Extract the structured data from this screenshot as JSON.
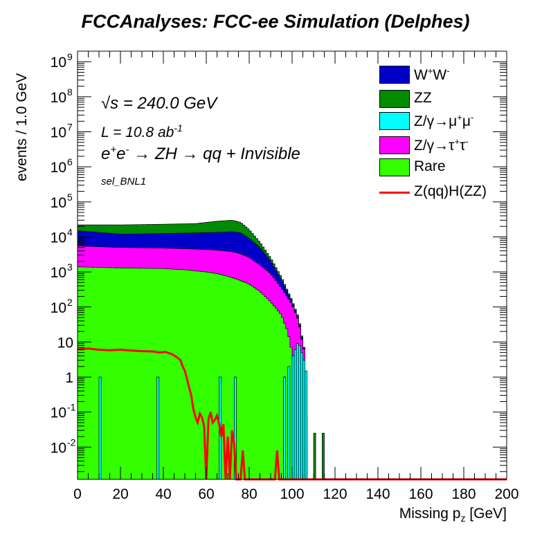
{
  "chart_data": {
    "type": "area",
    "title": "FCCAnalyses: FCC-ee Simulation (Delphes)",
    "xlabel": "Missing p_z [GeV]",
    "ylabel": "events / 1.0 GeV",
    "xlim": [
      0,
      200
    ],
    "ylim": [
      0.0012,
      2000000000
    ],
    "y_scale": "log",
    "x_ticks": [
      "0",
      "20",
      "40",
      "60",
      "80",
      "100",
      "120",
      "140",
      "160",
      "180",
      "200"
    ],
    "y_ticks": [
      {
        "label": "10",
        "exp": "-2",
        "value": 0.01
      },
      {
        "label": "10",
        "exp": "-1",
        "value": 0.1
      },
      {
        "label": "1",
        "exp": "",
        "value": 1
      },
      {
        "label": "10",
        "exp": "",
        "value": 10
      },
      {
        "label": "10",
        "exp": "2",
        "value": 100
      },
      {
        "label": "10",
        "exp": "3",
        "value": 1000
      },
      {
        "label": "10",
        "exp": "4",
        "value": 10000
      },
      {
        "label": "10",
        "exp": "5",
        "value": 100000
      },
      {
        "label": "10",
        "exp": "6",
        "value": 1000000
      },
      {
        "label": "10",
        "exp": "7",
        "value": 10000000
      },
      {
        "label": "10",
        "exp": "8",
        "value": 100000000
      },
      {
        "label": "10",
        "exp": "9",
        "value": 1000000000
      }
    ],
    "stacked_cumulative_top": [
      {
        "name": "ZZ",
        "color": "#008b00",
        "points": [
          [
            0,
            22000
          ],
          [
            20,
            22000
          ],
          [
            40,
            23000
          ],
          [
            55,
            24000
          ],
          [
            65,
            28000
          ],
          [
            72,
            30000
          ],
          [
            76,
            26000
          ],
          [
            80,
            16000
          ],
          [
            85,
            7000
          ],
          [
            90,
            2500
          ],
          [
            95,
            700
          ],
          [
            100,
            150
          ],
          [
            103,
            50
          ],
          [
            105,
            10
          ],
          [
            106,
            5
          ],
          [
            107,
            0.0012
          ]
        ]
      },
      {
        "name": "W+W-",
        "color": "#0000c8",
        "points": [
          [
            0,
            15000
          ],
          [
            20,
            12000
          ],
          [
            40,
            12500
          ],
          [
            55,
            13000
          ],
          [
            65,
            13500
          ],
          [
            72,
            14000
          ],
          [
            76,
            13000
          ],
          [
            80,
            9000
          ],
          [
            85,
            5000
          ],
          [
            90,
            2000
          ],
          [
            95,
            600
          ],
          [
            100,
            140
          ],
          [
            103,
            45
          ],
          [
            105,
            9
          ],
          [
            106,
            5
          ],
          [
            107,
            0.0012
          ]
        ]
      },
      {
        "name": "Z/γ→τ+τ-",
        "color": "#ff00ff",
        "points": [
          [
            0,
            5500
          ],
          [
            20,
            5000
          ],
          [
            40,
            4800
          ],
          [
            55,
            4500
          ],
          [
            65,
            4200
          ],
          [
            72,
            3800
          ],
          [
            76,
            3300
          ],
          [
            80,
            2600
          ],
          [
            85,
            1600
          ],
          [
            90,
            900
          ],
          [
            95,
            350
          ],
          [
            100,
            120
          ],
          [
            103,
            40
          ],
          [
            105,
            8
          ],
          [
            106,
            5
          ],
          [
            107,
            0.0012
          ]
        ]
      },
      {
        "name": "Rare",
        "color": "#33ff00",
        "points": [
          [
            0,
            1400
          ],
          [
            20,
            1300
          ],
          [
            40,
            1250
          ],
          [
            50,
            1150
          ],
          [
            60,
            1000
          ],
          [
            65,
            900
          ],
          [
            70,
            750
          ],
          [
            75,
            600
          ],
          [
            80,
            450
          ],
          [
            85,
            280
          ],
          [
            90,
            140
          ],
          [
            95,
            60
          ],
          [
            98,
            20
          ],
          [
            100,
            5
          ],
          [
            102,
            1
          ],
          [
            104,
            0.2
          ],
          [
            106,
            0.05
          ],
          [
            107,
            0.0012
          ]
        ]
      }
    ],
    "cyan_bins": [
      [
        96,
        1.0
      ],
      [
        98,
        2.0
      ],
      [
        100,
        4
      ],
      [
        101,
        6
      ],
      [
        102,
        9
      ],
      [
        103,
        8
      ],
      [
        104,
        5
      ],
      [
        105,
        3
      ],
      [
        106,
        1.5
      ]
    ],
    "spikes": [
      {
        "x": 10,
        "y": 1.0,
        "color": "#00ffff"
      },
      {
        "x": 37,
        "y": 1.0,
        "color": "#00ffff"
      },
      {
        "x": 66,
        "y": 1.0,
        "color": "#00ffff"
      },
      {
        "x": 73,
        "y": 1.0,
        "color": "#00ffff"
      },
      {
        "x": 96,
        "y": 1.0,
        "color": "#00ffff"
      },
      {
        "x": 110,
        "y": 0.025,
        "color": "#008b00"
      },
      {
        "x": 114,
        "y": 0.025,
        "color": "#008b00"
      }
    ],
    "signal": {
      "name": "Z(qq)H(ZZ)",
      "color": "#ff0000",
      "points": [
        [
          0,
          6.2
        ],
        [
          5,
          6.5
        ],
        [
          10,
          6.0
        ],
        [
          15,
          5.8
        ],
        [
          20,
          6.0
        ],
        [
          25,
          5.7
        ],
        [
          30,
          5.5
        ],
        [
          35,
          5.4
        ],
        [
          38,
          5.0
        ],
        [
          41,
          5.2
        ],
        [
          44,
          4.5
        ],
        [
          46,
          3.8
        ],
        [
          48,
          3.0
        ],
        [
          49,
          2.0
        ],
        [
          50,
          1.5
        ],
        [
          51,
          0.9
        ],
        [
          52,
          0.5
        ],
        [
          53,
          0.3
        ],
        [
          54,
          0.12
        ],
        [
          55,
          0.07
        ],
        [
          56,
          0.05
        ],
        [
          57,
          0.09
        ],
        [
          58,
          0.07
        ],
        [
          59,
          0.04
        ],
        [
          60,
          0.0012
        ],
        [
          61,
          0.06
        ],
        [
          62,
          0.1
        ],
        [
          63,
          0.05
        ],
        [
          64,
          0.06
        ],
        [
          65,
          0.08
        ],
        [
          66,
          0.045
        ],
        [
          67,
          0.02
        ],
        [
          68,
          0.045
        ],
        [
          69,
          0.0012
        ],
        [
          70,
          0.02
        ],
        [
          71,
          0.0012
        ],
        [
          72,
          0.03
        ],
        [
          73,
          0.012
        ],
        [
          74,
          0.0012
        ],
        [
          76,
          0.0012
        ],
        [
          77,
          0.008
        ],
        [
          78,
          0.0012
        ],
        [
          92,
          0.0012
        ],
        [
          93,
          0.008
        ],
        [
          94,
          0.0012
        ],
        [
          200,
          0.0012
        ]
      ]
    },
    "legend": [
      {
        "label": "W",
        "sup1": "+",
        "mid": "W",
        "sup2": "-",
        "color": "#0000c8",
        "kind": "box"
      },
      {
        "label": "ZZ",
        "color": "#008b00",
        "kind": "box"
      },
      {
        "label": "Z/γ→μ",
        "sup1": "+",
        "mid": "μ",
        "sup2": "-",
        "color": "#00ffff",
        "kind": "box"
      },
      {
        "label": "Z/γ→τ",
        "sup1": "+",
        "mid": "τ",
        "sup2": "-",
        "color": "#ff00ff",
        "kind": "box"
      },
      {
        "label": "Rare",
        "color": "#33ff00",
        "kind": "box"
      },
      {
        "label": "Z(qq)H(ZZ)",
        "color": "#ff0000",
        "kind": "line"
      }
    ],
    "legend_position": "top-right",
    "annotations": {
      "sqrt_s": "s = 240.0 GeV",
      "lumi": "L = 10.8 ab",
      "lumi_exp": "-1",
      "process": "e",
      "process_sup1": "+",
      "process_mid": "e",
      "process_sup2": "-",
      "process_rest": " → ZH → qq + Invisible",
      "selection": "sel_BNL1"
    }
  }
}
